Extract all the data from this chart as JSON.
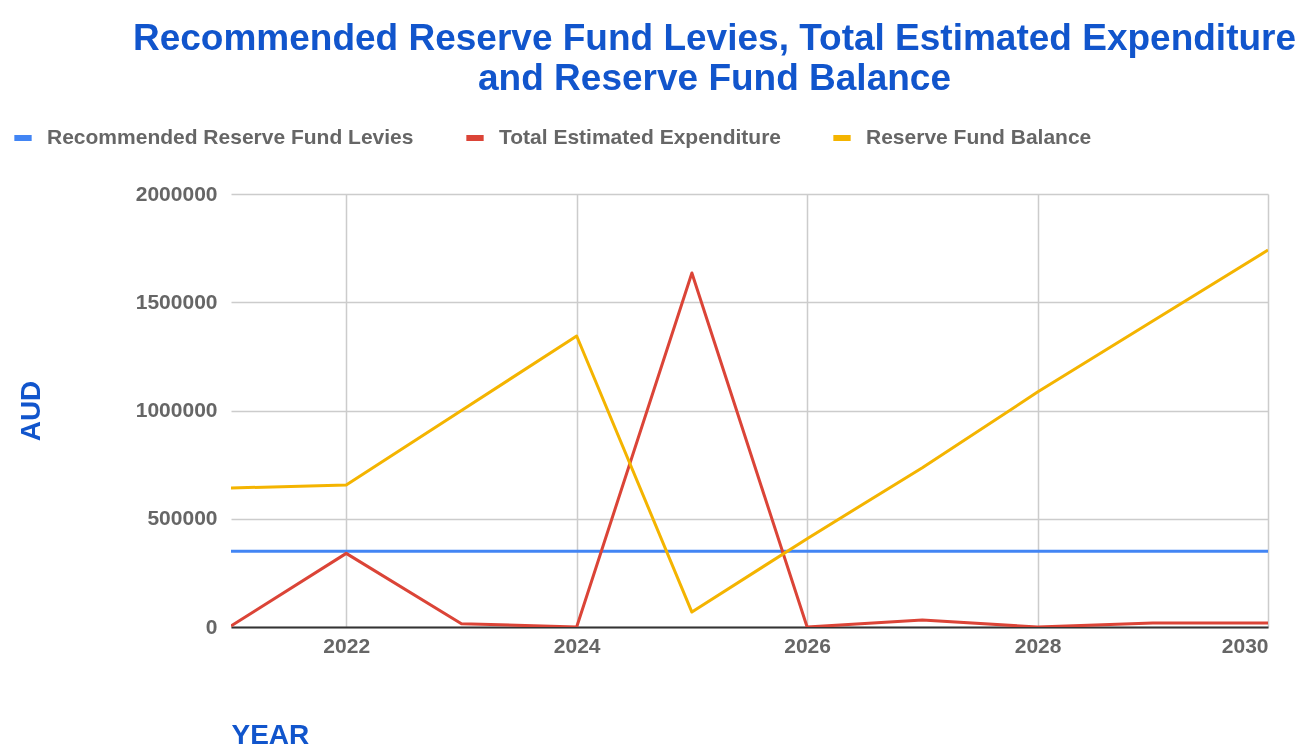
{
  "chart_data": {
    "type": "line",
    "title": "Recommended Reserve Fund Levies, Total Estimated Expenditure and Reserve Fund Balance",
    "xlabel": "YEAR",
    "ylabel": "AUD",
    "x": [
      2021,
      2022,
      2023,
      2024,
      2025,
      2026,
      2027,
      2028,
      2029,
      2030
    ],
    "series": [
      {
        "name": "Recommended Reserve Fund Levies",
        "color": "#4285f4",
        "values": [
          350000,
          350000,
          350000,
          350000,
          350000,
          350000,
          350000,
          350000,
          350000,
          350000
        ]
      },
      {
        "name": "Total Estimated Expenditure",
        "color": "#db4437",
        "values": [
          5000,
          340000,
          15000,
          0,
          1635000,
          0,
          32000,
          0,
          18000,
          18000
        ]
      },
      {
        "name": "Reserve Fund Balance",
        "color": "#f4b400",
        "values": [
          642000,
          656000,
          1000000,
          1344000,
          69000,
          408000,
          736000,
          1085000,
          1413000,
          1741000
        ]
      }
    ],
    "xlim": [
      2021,
      2030
    ],
    "xticks": [
      2022,
      2024,
      2026,
      2028,
      2030
    ],
    "ylim": [
      0,
      2000000
    ],
    "yticks": [
      0,
      500000,
      1000000,
      1500000,
      2000000
    ],
    "grid": true,
    "legend": "top",
    "marker": "none",
    "line_style": "solid"
  }
}
